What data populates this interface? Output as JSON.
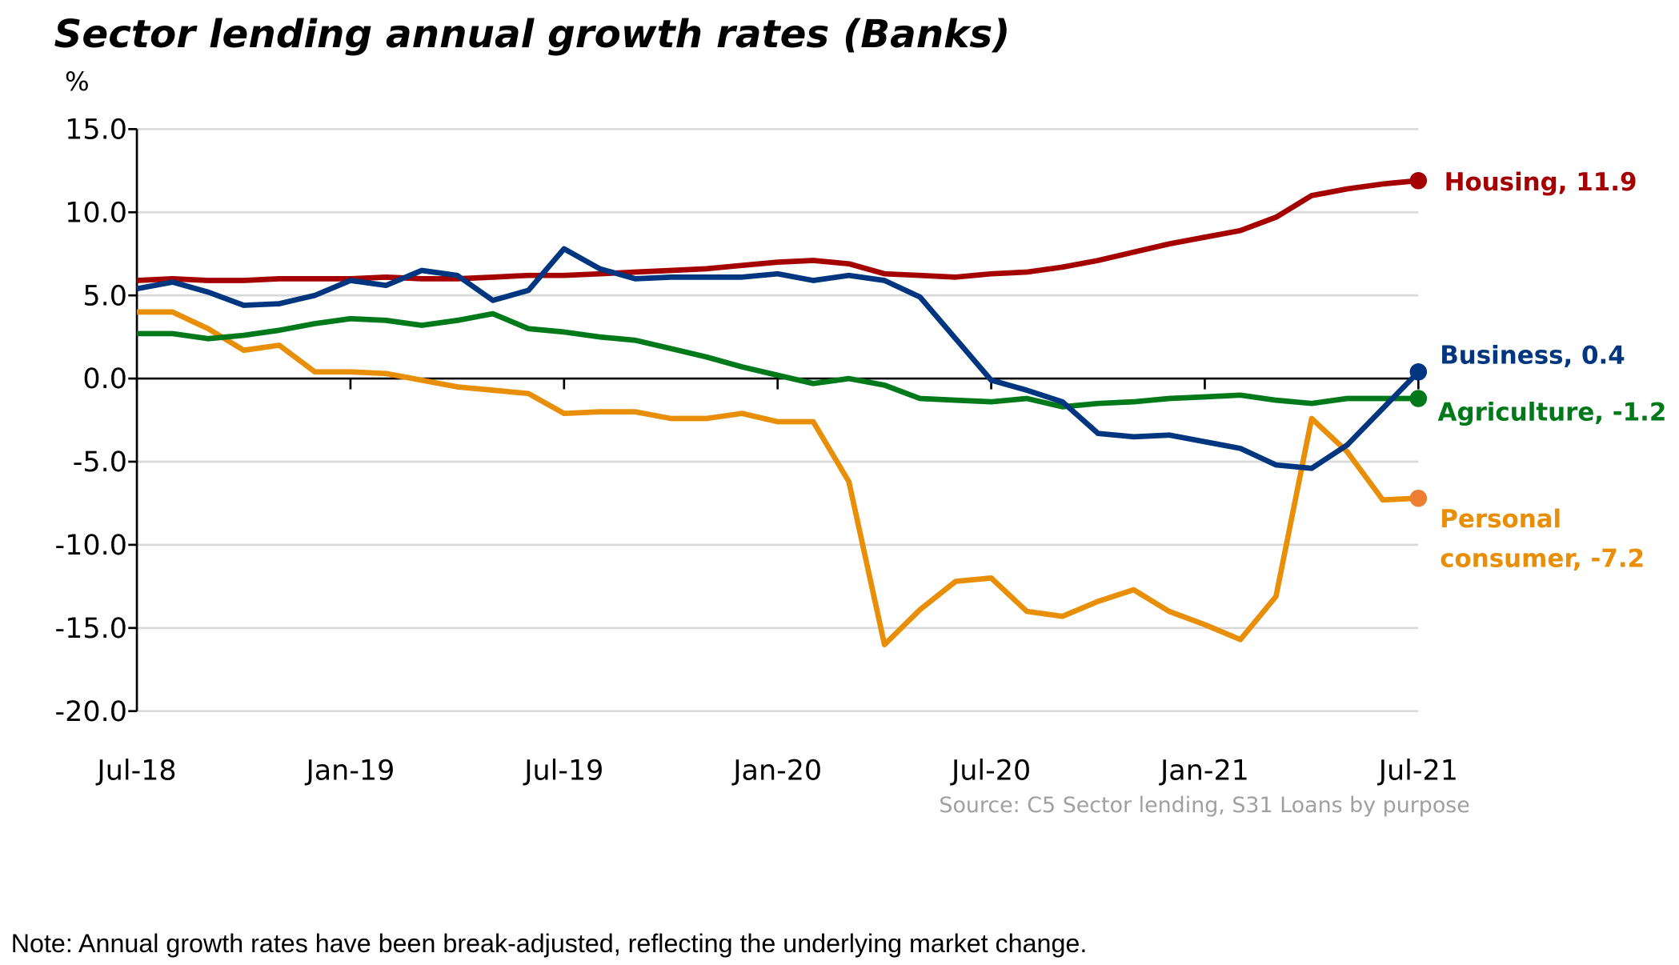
{
  "chart_data": {
    "type": "line",
    "title": "Sector lending annual growth rates (Banks)",
    "ylabel": "%",
    "xlabel": "",
    "ylim": [
      -20,
      15
    ],
    "yticks": [
      15,
      10,
      5,
      0,
      -5,
      -10,
      -15,
      -20
    ],
    "ytick_labels": [
      "15.0",
      "10.0",
      "5.0",
      "0.0",
      "-5.0",
      "-10.0",
      "-15.0",
      "-20.0"
    ],
    "grid": true,
    "x": [
      "Jul-18",
      "Aug-18",
      "Sep-18",
      "Oct-18",
      "Nov-18",
      "Dec-18",
      "Jan-19",
      "Feb-19",
      "Mar-19",
      "Apr-19",
      "May-19",
      "Jun-19",
      "Jul-19",
      "Aug-19",
      "Sep-19",
      "Oct-19",
      "Nov-19",
      "Dec-19",
      "Jan-20",
      "Feb-20",
      "Mar-20",
      "Apr-20",
      "May-20",
      "Jun-20",
      "Jul-20",
      "Aug-20",
      "Sep-20",
      "Oct-20",
      "Nov-20",
      "Dec-20",
      "Jan-21",
      "Feb-21",
      "Mar-21",
      "Apr-21",
      "May-21",
      "Jun-21",
      "Jul-21"
    ],
    "xtick_labels": [
      {
        "index": 0,
        "label": "Jul-18"
      },
      {
        "index": 6,
        "label": "Jan-19"
      },
      {
        "index": 12,
        "label": "Jul-19"
      },
      {
        "index": 18,
        "label": "Jan-20"
      },
      {
        "index": 24,
        "label": "Jul-20"
      },
      {
        "index": 30,
        "label": "Jan-21"
      },
      {
        "index": 36,
        "label": "Jul-21"
      }
    ],
    "series": [
      {
        "name": "Housing",
        "end_label": "Housing, 11.9",
        "color": "#a50000",
        "dot_color": "#a50000",
        "values": [
          5.9,
          6.0,
          5.9,
          5.9,
          6.0,
          6.0,
          6.0,
          6.1,
          6.0,
          6.0,
          6.1,
          6.2,
          6.2,
          6.3,
          6.4,
          6.5,
          6.6,
          6.8,
          7.0,
          7.1,
          6.9,
          6.3,
          6.2,
          6.1,
          6.3,
          6.4,
          6.7,
          7.1,
          7.6,
          8.1,
          8.5,
          8.9,
          9.7,
          11.0,
          11.4,
          11.7,
          11.9
        ]
      },
      {
        "name": "Business",
        "end_label": "Business, 0.4",
        "color": "#00357f",
        "dot_color": "#00357f",
        "values": [
          5.4,
          5.8,
          5.2,
          4.4,
          4.5,
          5.0,
          5.9,
          5.6,
          6.5,
          6.2,
          4.7,
          5.3,
          7.8,
          6.6,
          6.0,
          6.1,
          6.1,
          6.1,
          6.3,
          5.9,
          6.2,
          5.9,
          4.9,
          2.4,
          -0.1,
          -0.7,
          -1.4,
          -3.3,
          -3.5,
          -3.4,
          -3.8,
          -4.2,
          -5.2,
          -5.4,
          -4.0,
          -1.8,
          0.4
        ]
      },
      {
        "name": "Agriculture",
        "end_label": "Agriculture, -1.2",
        "color": "#00791b",
        "dot_color": "#00791b",
        "values": [
          2.7,
          2.7,
          2.4,
          2.6,
          2.9,
          3.3,
          3.6,
          3.5,
          3.2,
          3.5,
          3.9,
          3.0,
          2.8,
          2.5,
          2.3,
          1.8,
          1.3,
          0.7,
          0.2,
          -0.3,
          0.0,
          -0.4,
          -1.2,
          -1.3,
          -1.4,
          -1.2,
          -1.7,
          -1.5,
          -1.4,
          -1.2,
          -1.1,
          -1.0,
          -1.3,
          -1.5,
          -1.2,
          -1.2,
          -1.2
        ]
      },
      {
        "name": "Personal consumer",
        "end_label_lines": [
          "Personal",
          "consumer, -7.2"
        ],
        "color": "#e88e07",
        "dot_color": "#ed7d31",
        "values": [
          4.0,
          4.0,
          3.0,
          1.7,
          2.0,
          0.4,
          0.4,
          0.3,
          -0.1,
          -0.5,
          -0.7,
          -0.9,
          -2.1,
          -2.0,
          -2.0,
          -2.4,
          -2.4,
          -2.1,
          -2.6,
          -2.6,
          -6.2,
          -16.0,
          -13.9,
          -12.2,
          -12.0,
          -14.0,
          -14.3,
          -13.4,
          -12.7,
          -14.0,
          -14.8,
          -15.7,
          -13.1,
          -2.4,
          -4.4,
          -7.3,
          -7.2
        ]
      }
    ],
    "source": "Source: C5 Sector lending, S31 Loans by purpose",
    "note": "Note: Annual growth rates have been break-adjusted, reflecting the underlying market change."
  }
}
